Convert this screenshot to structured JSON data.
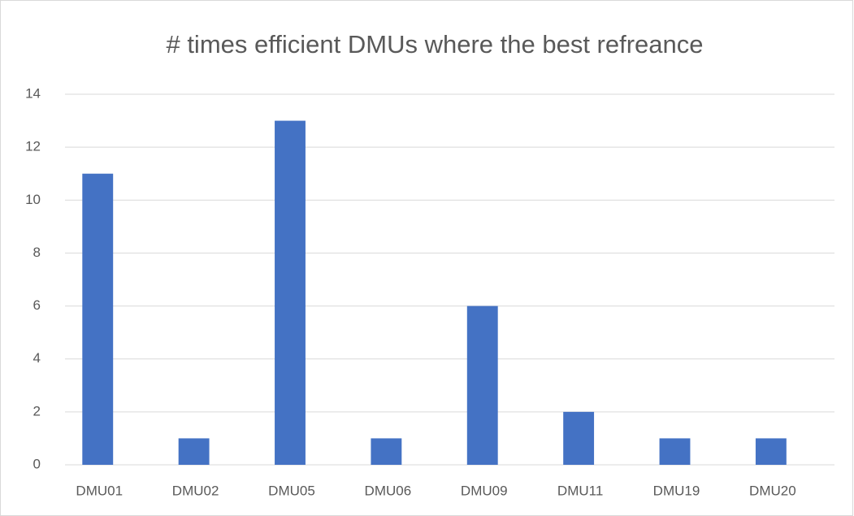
{
  "chart_data": {
    "type": "bar",
    "title": "# times efficient DMUs where the best refreance",
    "categories": [
      "DMU01",
      "DMU02",
      "DMU05",
      "DMU06",
      "DMU09",
      "DMU11",
      "DMU19",
      "DMU20"
    ],
    "values": [
      11,
      1,
      13,
      1,
      6,
      2,
      1,
      1
    ],
    "color": "#4472c4",
    "ylim": [
      0,
      14
    ],
    "yticks": [
      0,
      2,
      4,
      6,
      8,
      10,
      12,
      14
    ],
    "grid": true
  }
}
